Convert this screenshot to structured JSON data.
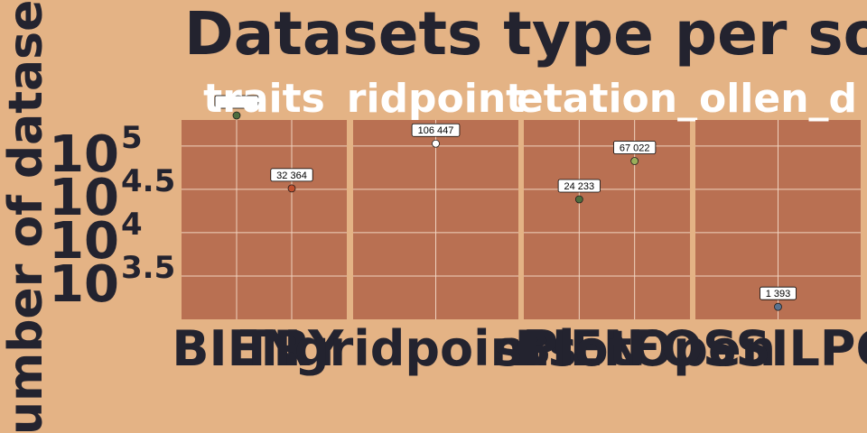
{
  "chart_data": {
    "type": "scatter",
    "title": "Datasets type per so",
    "ylabel": "umber of datase",
    "ylog_base": 10,
    "ylim_log10": [
      3.0,
      5.3
    ],
    "y_tick_exponents": [
      "5",
      "4.5",
      "4",
      "3.5"
    ],
    "grid": true,
    "facets": [
      {
        "strip": "traits",
        "x_categories": [
          "BIEN",
          "TRY"
        ],
        "points": [
          {
            "x": "BIEN",
            "y": 225000,
            "label": "",
            "color": "#4E6D3E"
          },
          {
            "x": "TRY",
            "y": 32364,
            "label": "32 364",
            "color": "#C1502E"
          }
        ]
      },
      {
        "strip": "ridpoint",
        "x_categories": [
          "gridpoints"
        ],
        "points": [
          {
            "x": "gridpoints",
            "y": 106447,
            "label": "106 447",
            "color": "#FFFFFF"
          }
        ]
      },
      {
        "strip": "etation_",
        "x_categories": [
          "BIEN",
          "sPlotOpen"
        ],
        "points": [
          {
            "x": "BIEN",
            "y": 24233,
            "label": "24 233",
            "color": "#4E6D3E"
          },
          {
            "x": "sPlotOpen",
            "y": 67022,
            "label": "67 022",
            "color": "#9AAE5A"
          }
        ]
      },
      {
        "strip": "ollen_d",
        "x_categories": [
          "FOSSILPOL"
        ],
        "points": [
          {
            "x": "FOSSILPOL",
            "y": 1393,
            "label": "1 393",
            "color": "#5A7390"
          }
        ]
      }
    ],
    "x_tick_labels": [
      "BIEN",
      "TRY",
      "gridpoints",
      "BIEN",
      "sPlotOpen",
      "FOSSILPOL"
    ]
  }
}
